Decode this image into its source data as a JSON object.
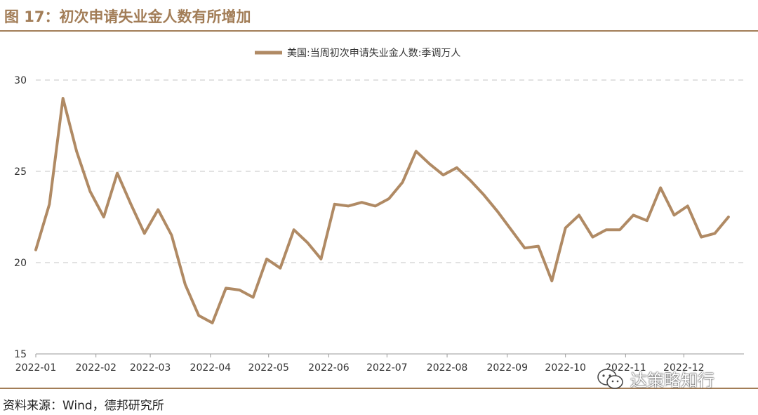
{
  "figure": {
    "title": "图 17：初次申请失业金人数有所增加",
    "source": "资料来源：Wind，德邦研究所",
    "watermark": "达策略知行"
  },
  "colors": {
    "accent": "#a27d57",
    "series": "#b08a64",
    "grid": "#d9d9d9"
  },
  "chart_data": {
    "type": "line",
    "title": "",
    "xlabel": "",
    "ylabel": "",
    "ylim": [
      15,
      30
    ],
    "yticks": [
      "15",
      "20",
      "25",
      "30"
    ],
    "xticks": [
      "2022-01",
      "2022-02",
      "2022-03",
      "2022-04",
      "2022-05",
      "2022-06",
      "2022-07",
      "2022-08",
      "2022-09",
      "2022-10",
      "2022-11",
      "2022-12"
    ],
    "grid": true,
    "legend_position": "top",
    "series": [
      {
        "name": "美国:当周初次申请失业金人数:季调万人",
        "x": [
          "2022-01-01",
          "2022-01-08",
          "2022-01-15",
          "2022-01-22",
          "2022-01-29",
          "2022-02-05",
          "2022-02-12",
          "2022-02-19",
          "2022-02-26",
          "2022-03-05",
          "2022-03-12",
          "2022-03-19",
          "2022-03-26",
          "2022-04-02",
          "2022-04-09",
          "2022-04-16",
          "2022-04-23",
          "2022-04-30",
          "2022-05-07",
          "2022-05-14",
          "2022-05-21",
          "2022-05-28",
          "2022-06-04",
          "2022-06-11",
          "2022-06-18",
          "2022-06-25",
          "2022-07-02",
          "2022-07-09",
          "2022-07-16",
          "2022-07-23",
          "2022-07-30",
          "2022-08-06",
          "2022-08-13",
          "2022-08-20",
          "2022-08-27",
          "2022-09-03",
          "2022-09-10",
          "2022-09-17",
          "2022-09-24",
          "2022-10-01",
          "2022-10-08",
          "2022-10-15",
          "2022-10-22",
          "2022-10-29",
          "2022-11-05",
          "2022-11-12",
          "2022-11-19",
          "2022-11-26",
          "2022-12-03",
          "2022-12-10",
          "2022-12-17",
          "2022-12-24"
        ],
        "values": [
          20.7,
          23.2,
          29.0,
          26.1,
          23.9,
          22.5,
          24.9,
          23.2,
          21.6,
          22.9,
          21.5,
          18.8,
          17.1,
          16.7,
          18.6,
          18.5,
          18.1,
          20.2,
          19.7,
          21.8,
          21.1,
          20.2,
          23.2,
          23.1,
          23.3,
          23.1,
          23.5,
          24.4,
          26.1,
          25.4,
          24.8,
          25.2,
          24.5,
          23.7,
          22.8,
          21.8,
          20.8,
          20.9,
          19.0,
          21.9,
          22.6,
          21.4,
          21.8,
          21.8,
          22.6,
          22.3,
          24.1,
          22.6,
          23.1,
          21.4,
          21.6,
          22.5
        ]
      }
    ]
  }
}
